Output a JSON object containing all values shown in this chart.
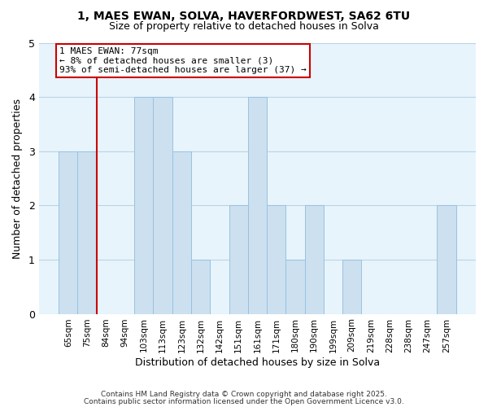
{
  "title": "1, MAES EWAN, SOLVA, HAVERFORDWEST, SA62 6TU",
  "subtitle": "Size of property relative to detached houses in Solva",
  "xlabel": "Distribution of detached houses by size in Solva",
  "ylabel": "Number of detached properties",
  "bar_color": "#cce0f0",
  "bar_edge_color": "#99c2e0",
  "grid_color": "#b8d4e8",
  "background_color": "#e8f4fb",
  "categories": [
    "65sqm",
    "75sqm",
    "84sqm",
    "94sqm",
    "103sqm",
    "113sqm",
    "123sqm",
    "132sqm",
    "142sqm",
    "151sqm",
    "161sqm",
    "171sqm",
    "180sqm",
    "190sqm",
    "199sqm",
    "209sqm",
    "219sqm",
    "228sqm",
    "238sqm",
    "247sqm",
    "257sqm"
  ],
  "values": [
    3,
    3,
    0,
    0,
    4,
    4,
    3,
    1,
    0,
    2,
    4,
    2,
    1,
    2,
    0,
    1,
    0,
    0,
    0,
    0,
    2
  ],
  "subject_line_color": "#cc0000",
  "annotation_text": "1 MAES EWAN: 77sqm\n← 8% of detached houses are smaller (3)\n93% of semi-detached houses are larger (37) →",
  "annotation_box_color": "#cc0000",
  "ylim": [
    0,
    5
  ],
  "yticks": [
    0,
    1,
    2,
    3,
    4,
    5
  ],
  "footnote1": "Contains HM Land Registry data © Crown copyright and database right 2025.",
  "footnote2": "Contains public sector information licensed under the Open Government Licence v3.0."
}
